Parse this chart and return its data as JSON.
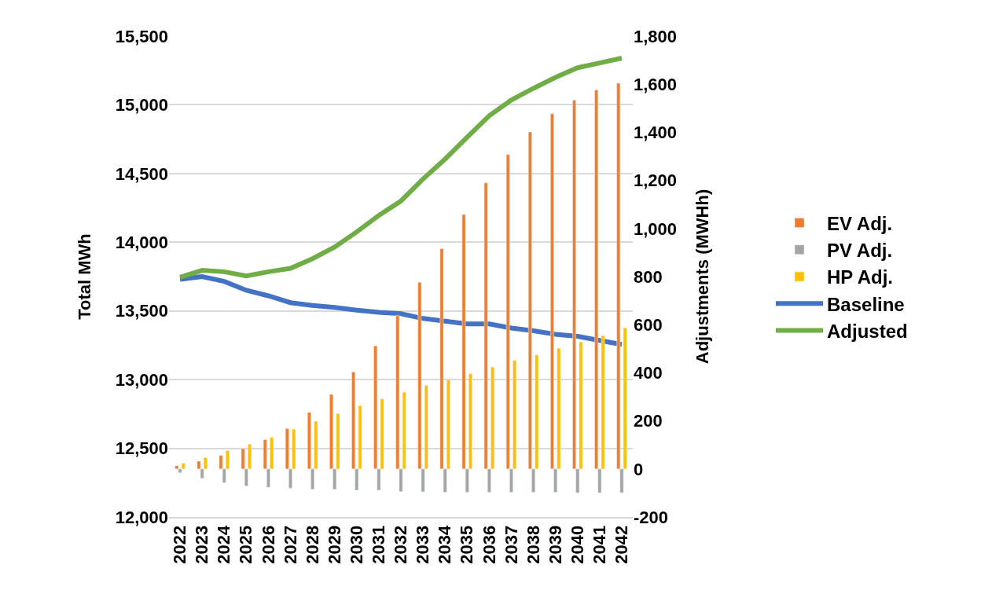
{
  "chart_data": {
    "type": "bar",
    "ylabel": "Total MWh",
    "y2label": "Adjustments (MWHh)",
    "categories": [
      "2022",
      "2023",
      "2024",
      "2025",
      "2026",
      "2027",
      "2028",
      "2029",
      "2030",
      "2031",
      "2032",
      "2033",
      "2034",
      "2035",
      "2036",
      "2037",
      "2038",
      "2039",
      "2040",
      "2041",
      "2042"
    ],
    "series": [
      {
        "name": "EV Adj.",
        "axis": "y2",
        "color": "#ed7d31",
        "values": [
          13,
          32,
          56,
          84,
          122,
          168,
          235,
          310,
          403,
          512,
          639,
          776,
          916,
          1058,
          1190,
          1307,
          1401,
          1477,
          1534,
          1576,
          1604
        ]
      },
      {
        "name": "PV Adj.",
        "axis": "y2",
        "color": "#a5a5a5",
        "values": [
          -16,
          -39,
          -57,
          -71,
          -76,
          -80,
          -85,
          -85,
          -89,
          -89,
          -94,
          -95,
          -97,
          -97,
          -97,
          -97,
          -97,
          -97,
          -99,
          -99,
          -99
        ]
      },
      {
        "name": "HP Adj.",
        "axis": "y2",
        "color": "#ffc000",
        "values": [
          23,
          47,
          76,
          103,
          131,
          165,
          198,
          230,
          263,
          291,
          319,
          347,
          371,
          396,
          423,
          451,
          474,
          502,
          528,
          554,
          586
        ]
      },
      {
        "name": "Baseline",
        "type": "line",
        "color": "#4472c4",
        "values": [
          13730,
          13750,
          13715,
          13650,
          13610,
          13560,
          13540,
          13525,
          13505,
          13490,
          13480,
          13445,
          13425,
          13405,
          13405,
          13375,
          13355,
          13330,
          13315,
          13285,
          13255
        ]
      },
      {
        "name": "Adjusted",
        "type": "line",
        "color": "#70ad47",
        "values": [
          13745,
          13795,
          13785,
          13755,
          13785,
          13810,
          13880,
          13965,
          14075,
          14195,
          14300,
          14460,
          14605,
          14765,
          14920,
          15035,
          15120,
          15200,
          15270,
          15305,
          15340
        ]
      }
    ],
    "ylim": [
      12000,
      15500
    ],
    "yticks": [
      {
        "value": 12000,
        "label": "12,000"
      },
      {
        "value": 12500,
        "label": "12,500"
      },
      {
        "value": 13000,
        "label": "13,000"
      },
      {
        "value": 13500,
        "label": "13,500"
      },
      {
        "value": 14000,
        "label": "14,000"
      },
      {
        "value": 14500,
        "label": "14,500"
      },
      {
        "value": 15000,
        "label": "15,000"
      },
      {
        "value": 15500,
        "label": "15,500"
      }
    ],
    "y2lim": [
      -200,
      1800
    ],
    "y2ticks": [
      -200,
      0,
      200,
      400,
      600,
      800,
      {
        "value": 1000,
        "label": "1,000"
      },
      {
        "value": 1200,
        "label": "1,200"
      },
      {
        "value": 1400,
        "label": "1,400"
      },
      {
        "value": 1600,
        "label": "1,600"
      },
      {
        "value": 1800,
        "label": "1,800"
      }
    ],
    "grid": "y",
    "legend": "right"
  }
}
